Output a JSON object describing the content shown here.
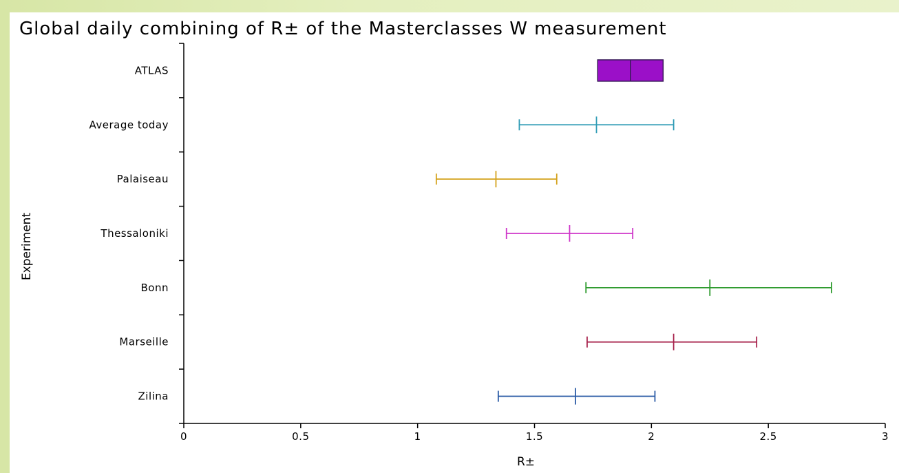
{
  "chart_data": {
    "type": "errorbar",
    "title": "Global daily combining of R± of the Masterclasses W measurement",
    "xlabel": "R±",
    "ylabel": "Experiment",
    "xlim": [
      0,
      3
    ],
    "xticks": [
      "0",
      "0.5",
      "1",
      "1.5",
      "2",
      "2.5",
      "3"
    ],
    "grid": false,
    "series": [
      {
        "label": "ATLAS",
        "center": 1.91,
        "low": 1.77,
        "high": 2.05,
        "style": "box",
        "color": "#9b10c8"
      },
      {
        "label": "Average today",
        "center": 1.765,
        "low": 1.435,
        "high": 2.095,
        "style": "errorbar",
        "color": "#2e9bb5"
      },
      {
        "label": "Palaiseau",
        "center": 1.335,
        "low": 1.08,
        "high": 1.595,
        "style": "errorbar",
        "color": "#d4a21c"
      },
      {
        "label": "Thessaloniki",
        "center": 1.65,
        "low": 1.38,
        "high": 1.92,
        "style": "errorbar",
        "color": "#cf37c9"
      },
      {
        "label": "Bonn",
        "center": 2.25,
        "low": 1.72,
        "high": 2.77,
        "style": "errorbar",
        "color": "#2d9a2d"
      },
      {
        "label": "Marseille",
        "center": 2.095,
        "low": 1.725,
        "high": 2.45,
        "style": "errorbar",
        "color": "#a8244e"
      },
      {
        "label": "Zilina",
        "center": 1.675,
        "low": 1.345,
        "high": 2.015,
        "style": "errorbar",
        "color": "#2b5ba6"
      }
    ]
  }
}
